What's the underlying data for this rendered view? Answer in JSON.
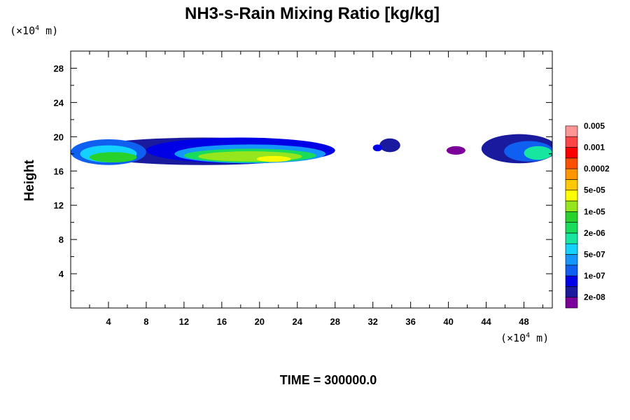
{
  "chart_data": {
    "type": "heatmap",
    "title": "NH3-s-Rain Mixing Ratio [kg/kg]",
    "ylabel": "Height",
    "y_unit": [
      "(×10",
      "4",
      " m)"
    ],
    "x_unit": [
      "(×10",
      "4",
      " m)"
    ],
    "time_label": "TIME = 300000.0",
    "xlim": [
      0,
      51
    ],
    "ylim": [
      0,
      30
    ],
    "x_ticks": [
      "4",
      "8",
      "12",
      "16",
      "20",
      "24",
      "28",
      "32",
      "36",
      "40",
      "44",
      "48"
    ],
    "y_ticks": [
      "4",
      "8",
      "12",
      "16",
      "20",
      "24",
      "28"
    ],
    "x_tick_values": [
      4,
      8,
      12,
      16,
      20,
      24,
      28,
      32,
      36,
      40,
      44,
      48
    ],
    "y_tick_values": [
      4,
      8,
      12,
      16,
      20,
      24,
      28
    ],
    "colorbar": {
      "colors": [
        "#7b0099",
        "#1a1a9e",
        "#0000e6",
        "#0f5ff0",
        "#1496ff",
        "#14d2ff",
        "#16e6a0",
        "#19dc5a",
        "#28d22d",
        "#96e61e",
        "#ffff00",
        "#ffc800",
        "#ff9600",
        "#ff5000",
        "#ff0000",
        "#ff4646",
        "#ff9696"
      ],
      "labels": [
        "2e-08",
        "1e-07",
        "5e-07",
        "2e-06",
        "1e-05",
        "5e-05",
        "0.0002",
        "0.001",
        "0.005"
      ]
    },
    "regions": [
      {
        "x": 14,
        "y": 18.3,
        "rx": 13,
        "ry": 1.6,
        "level": 1
      },
      {
        "x": 18,
        "y": 18.4,
        "rx": 10,
        "ry": 1.5,
        "level": 2
      },
      {
        "x": 4,
        "y": 18.2,
        "rx": 4,
        "ry": 1.5,
        "level": 3
      },
      {
        "x": 19,
        "y": 18.0,
        "rx": 8,
        "ry": 1.1,
        "level": 4
      },
      {
        "x": 4,
        "y": 18.0,
        "rx": 3,
        "ry": 1.0,
        "level": 5
      },
      {
        "x": 19,
        "y": 17.8,
        "rx": 7,
        "ry": 0.8,
        "level": 7
      },
      {
        "x": 4.5,
        "y": 17.6,
        "rx": 2.5,
        "ry": 0.6,
        "level": 8
      },
      {
        "x": 19,
        "y": 17.7,
        "rx": 5.5,
        "ry": 0.6,
        "level": 9
      },
      {
        "x": 21.5,
        "y": 17.4,
        "rx": 1.8,
        "ry": 0.35,
        "level": 10
      },
      {
        "x": 33.8,
        "y": 19.0,
        "rx": 1.1,
        "ry": 0.8,
        "level": 1
      },
      {
        "x": 32.5,
        "y": 18.7,
        "rx": 0.5,
        "ry": 0.4,
        "level": 2
      },
      {
        "x": 40.8,
        "y": 18.4,
        "rx": 1.0,
        "ry": 0.5,
        "level": 0
      },
      {
        "x": 47.5,
        "y": 18.6,
        "rx": 4,
        "ry": 1.7,
        "level": 1
      },
      {
        "x": 48.5,
        "y": 18.3,
        "rx": 2.6,
        "ry": 1.2,
        "level": 3
      },
      {
        "x": 49.5,
        "y": 18.1,
        "rx": 1.5,
        "ry": 0.8,
        "level": 6
      }
    ]
  }
}
